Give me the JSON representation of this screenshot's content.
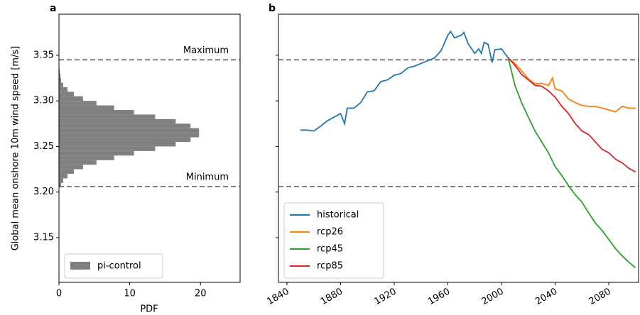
{
  "chart_data": [
    {
      "type": "histogram",
      "orientation": "horizontal",
      "title": "a",
      "ylabel": "Global mean onshore 10m wind speed [m/s]",
      "xlabel": "PDF",
      "name": "pi-control",
      "color": "#808080",
      "bins": [
        3.205,
        3.21,
        3.215,
        3.22,
        3.225,
        3.23,
        3.235,
        3.24,
        3.245,
        3.25,
        3.255,
        3.26,
        3.265,
        3.27,
        3.275,
        3.28,
        3.285,
        3.29,
        3.295,
        3.3,
        3.305,
        3.31,
        3.315,
        3.32,
        3.325,
        3.33,
        3.335
      ],
      "values": [
        0.3,
        0.6,
        1.2,
        2.1,
        3.4,
        5.3,
        7.8,
        10.6,
        13.6,
        16.5,
        18.6,
        19.8,
        19.8,
        18.6,
        16.5,
        13.6,
        10.6,
        7.8,
        5.3,
        3.4,
        2.1,
        1.2,
        0.6,
        0.3,
        0.2,
        0.1
      ],
      "hlines": [
        {
          "label": "Maximum",
          "value": 3.345
        },
        {
          "label": "Minimum",
          "value": 3.206
        }
      ],
      "xlim": [
        0,
        25.6
      ],
      "xticks": [
        0,
        10,
        20
      ],
      "ylim": [
        3.101,
        3.395
      ],
      "yticks": [
        3.15,
        {
          "value": 3.2,
          "label": "3.20"
        },
        3.25,
        {
          "value": 3.3,
          "label": "3.30"
        },
        3.35
      ],
      "legend": "lower left"
    },
    {
      "type": "line",
      "title": "b",
      "xlim": [
        1833.7,
        2102.2
      ],
      "xticks": [
        1840,
        1880,
        1920,
        1960,
        2000,
        2040,
        2080
      ],
      "ylim": [
        3.101,
        3.395
      ],
      "yticks": [
        3.15,
        3.2,
        3.25,
        3.3,
        3.35
      ],
      "hlines": [
        3.345,
        3.206
      ],
      "legend": "lower left",
      "series": [
        {
          "name": "historical",
          "color": "#1f77b4",
          "x": [
            1850,
            1855,
            1860,
            1865,
            1870,
            1875,
            1880,
            1883,
            1885,
            1890,
            1895,
            1900,
            1905,
            1910,
            1915,
            1920,
            1925,
            1930,
            1935,
            1940,
            1945,
            1950,
            1955,
            1960,
            1962,
            1965,
            1970,
            1972,
            1975,
            1980,
            1983,
            1985,
            1987,
            1990,
            1993,
            1995,
            2000,
            2005
          ],
          "values": [
            3.268,
            3.268,
            3.267,
            3.272,
            3.278,
            3.282,
            3.286,
            3.275,
            3.292,
            3.292,
            3.298,
            3.31,
            3.311,
            3.321,
            3.323,
            3.328,
            3.33,
            3.336,
            3.338,
            3.341,
            3.344,
            3.347,
            3.355,
            3.372,
            3.376,
            3.369,
            3.372,
            3.375,
            3.363,
            3.352,
            3.357,
            3.352,
            3.364,
            3.362,
            3.342,
            3.356,
            3.357,
            3.347
          ]
        },
        {
          "name": "rcp26",
          "color": "#ff7f0e",
          "x": [
            2005,
            2010,
            2015,
            2020,
            2025,
            2030,
            2035,
            2038,
            2040,
            2045,
            2050,
            2055,
            2060,
            2065,
            2070,
            2075,
            2080,
            2085,
            2090,
            2095,
            2100
          ],
          "values": [
            3.347,
            3.341,
            3.333,
            3.324,
            3.319,
            3.319,
            3.317,
            3.325,
            3.313,
            3.311,
            3.302,
            3.298,
            3.295,
            3.294,
            3.294,
            3.292,
            3.29,
            3.288,
            3.294,
            3.292,
            3.292
          ]
        },
        {
          "name": "rcp45",
          "color": "#2ca02c",
          "x": [
            2005,
            2010,
            2015,
            2020,
            2025,
            2030,
            2035,
            2040,
            2045,
            2050,
            2055,
            2060,
            2065,
            2070,
            2075,
            2080,
            2085,
            2090,
            2095,
            2100
          ],
          "values": [
            3.347,
            3.317,
            3.298,
            3.282,
            3.267,
            3.255,
            3.243,
            3.228,
            3.218,
            3.207,
            3.197,
            3.189,
            3.177,
            3.166,
            3.158,
            3.148,
            3.138,
            3.13,
            3.123,
            3.117
          ]
        },
        {
          "name": "rcp85",
          "color": "#d62728",
          "x": [
            2005,
            2010,
            2015,
            2020,
            2025,
            2030,
            2035,
            2040,
            2045,
            2050,
            2055,
            2060,
            2065,
            2070,
            2075,
            2080,
            2085,
            2090,
            2095,
            2100
          ],
          "values": [
            3.347,
            3.339,
            3.329,
            3.323,
            3.317,
            3.316,
            3.311,
            3.304,
            3.294,
            3.286,
            3.275,
            3.267,
            3.263,
            3.255,
            3.247,
            3.243,
            3.236,
            3.232,
            3.226,
            3.222
          ]
        }
      ]
    }
  ]
}
